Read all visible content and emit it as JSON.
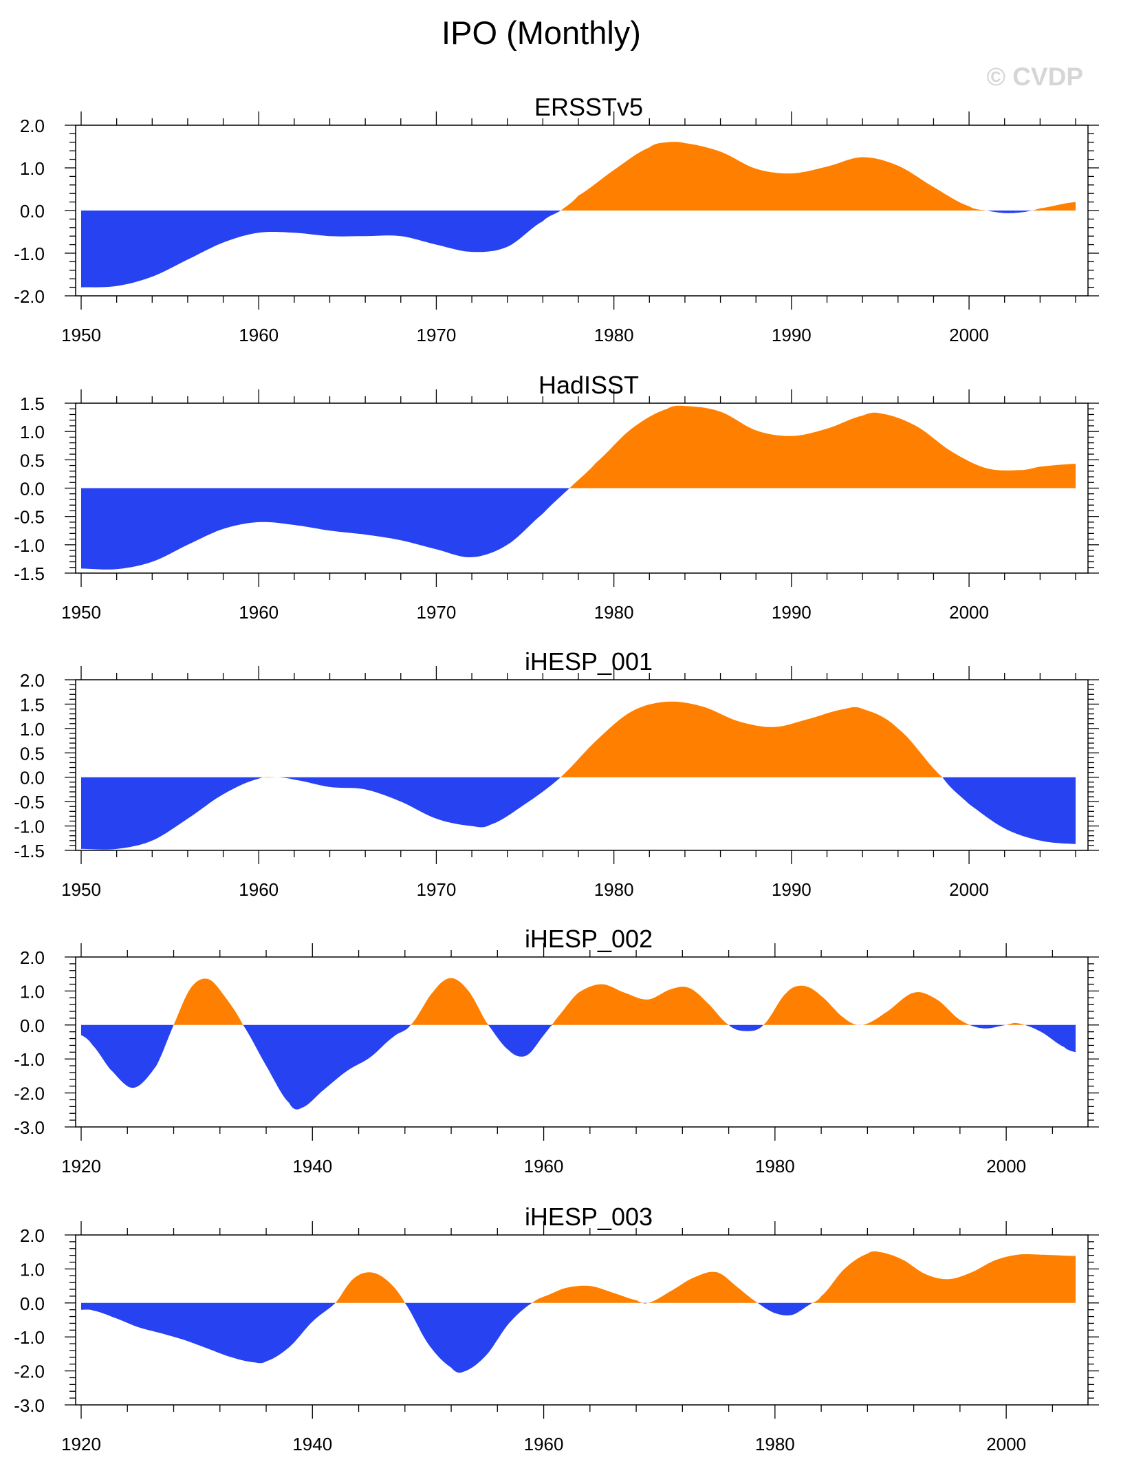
{
  "title": "IPO (Monthly)",
  "watermark": "© CVDP",
  "colors": {
    "positive": "#ff8000",
    "negative": "#2742f0",
    "axis": "#000000"
  },
  "chart_data": [
    {
      "type": "area",
      "title": "ERSSTv5",
      "xlim": [
        1950,
        2006
      ],
      "ylim": [
        -2.0,
        2.0
      ],
      "xticks": [
        1950,
        1960,
        1970,
        1980,
        1990,
        2000
      ],
      "yticks": [
        -2.0,
        -1.0,
        0.0,
        1.0,
        2.0
      ],
      "ytick_labels": [
        "-2.0",
        "-1.0",
        "0.0",
        "1.0",
        "2.0"
      ],
      "x": [
        1950,
        1952,
        1954,
        1956,
        1958,
        1960,
        1962,
        1964,
        1966,
        1968,
        1970,
        1972,
        1974,
        1976,
        1977,
        1978,
        1980,
        1982,
        1983,
        1984,
        1986,
        1988,
        1990,
        1992,
        1994,
        1996,
        1998,
        2000,
        2001,
        2002,
        2003,
        2004,
        2006
      ],
      "values": [
        -1.8,
        -1.77,
        -1.55,
        -1.15,
        -0.75,
        -0.52,
        -0.52,
        -0.6,
        -0.6,
        -0.6,
        -0.8,
        -0.97,
        -0.85,
        -0.25,
        0.0,
        0.35,
        0.95,
        1.48,
        1.6,
        1.58,
        1.38,
        0.98,
        0.87,
        1.03,
        1.25,
        1.05,
        0.55,
        0.1,
        0.0,
        -0.06,
        -0.04,
        0.05,
        0.2
      ]
    },
    {
      "type": "area",
      "title": "HadISST",
      "xlim": [
        1950,
        2006
      ],
      "ylim": [
        -1.5,
        1.5
      ],
      "xticks": [
        1950,
        1960,
        1970,
        1980,
        1990,
        2000
      ],
      "yticks": [
        -1.5,
        -1.0,
        -0.5,
        0.0,
        0.5,
        1.0,
        1.5
      ],
      "ytick_labels": [
        "-1.5",
        "-1.0",
        "-0.5",
        "0.0",
        "0.5",
        "1.0",
        "1.5"
      ],
      "x": [
        1950,
        1952,
        1954,
        1956,
        1958,
        1960,
        1962,
        1964,
        1966,
        1968,
        1970,
        1972,
        1974,
        1976,
        1977.5,
        1979,
        1981,
        1983,
        1984,
        1986,
        1988,
        1990,
        1992,
        1994,
        1995,
        1997,
        1999,
        2001,
        2003,
        2004,
        2006
      ],
      "values": [
        -1.42,
        -1.43,
        -1.3,
        -1.0,
        -0.72,
        -0.6,
        -0.65,
        -0.75,
        -0.82,
        -0.92,
        -1.08,
        -1.22,
        -1.0,
        -0.45,
        0.0,
        0.45,
        1.05,
        1.4,
        1.45,
        1.35,
        1.02,
        0.92,
        1.05,
        1.28,
        1.32,
        1.1,
        0.65,
        0.35,
        0.32,
        0.38,
        0.43
      ]
    },
    {
      "type": "area",
      "title": "iHESP_001",
      "xlim": [
        1950,
        2006
      ],
      "ylim": [
        -1.5,
        2.0
      ],
      "xticks": [
        1950,
        1960,
        1970,
        1980,
        1990,
        2000
      ],
      "yticks": [
        -1.5,
        -1.0,
        -0.5,
        0.0,
        0.5,
        1.0,
        1.5,
        2.0
      ],
      "ytick_labels": [
        "-1.5",
        "-1.0",
        "-0.5",
        "0.0",
        "0.5",
        "1.0",
        "1.5",
        "2.0"
      ],
      "x": [
        1950,
        1952,
        1954,
        1956,
        1958,
        1960,
        1961,
        1962,
        1964,
        1966,
        1968,
        1970,
        1972,
        1973,
        1975,
        1977,
        1979,
        1981,
        1983,
        1985,
        1987,
        1989,
        1991,
        1993,
        1994,
        1996,
        1998.5,
        2000,
        2002,
        2004,
        2006
      ],
      "values": [
        -1.47,
        -1.47,
        -1.3,
        -0.85,
        -0.35,
        -0.03,
        0.0,
        -0.05,
        -0.2,
        -0.25,
        -0.5,
        -0.85,
        -1.0,
        -0.98,
        -0.55,
        0.0,
        0.75,
        1.35,
        1.55,
        1.45,
        1.15,
        1.03,
        1.2,
        1.4,
        1.4,
        1.0,
        0.0,
        -0.55,
        -1.05,
        -1.3,
        -1.37
      ]
    },
    {
      "type": "area",
      "title": "iHESP_002",
      "xlim": [
        1920,
        2006
      ],
      "ylim": [
        -3.0,
        2.0
      ],
      "xticks": [
        1920,
        1940,
        1960,
        1980,
        2000
      ],
      "yticks": [
        -3.0,
        -2.0,
        -1.0,
        0.0,
        1.0,
        2.0
      ],
      "ytick_labels": [
        "-3.0",
        "-2.0",
        "-1.0",
        "0.0",
        "1.0",
        "2.0"
      ],
      "x": [
        1920,
        1921,
        1922.5,
        1924.5,
        1926.5,
        1928,
        1929.5,
        1931,
        1932.5,
        1934,
        1936,
        1938,
        1939,
        1941,
        1943,
        1945,
        1947,
        1948.5,
        1950.5,
        1952,
        1953.5,
        1955,
        1957,
        1958.5,
        1960,
        1961.5,
        1963,
        1965,
        1967,
        1969,
        1971,
        1972.5,
        1974,
        1976,
        1977.5,
        1979,
        1981,
        1982.5,
        1984,
        1986,
        1987.5,
        1989.5,
        1992,
        1994,
        1996,
        1998,
        2000,
        2001,
        2003,
        2005,
        2006
      ],
      "values": [
        -0.3,
        -0.6,
        -1.3,
        -1.85,
        -1.2,
        0.0,
        1.1,
        1.35,
        0.8,
        0.0,
        -1.2,
        -2.3,
        -2.45,
        -1.9,
        -1.35,
        -0.95,
        -0.35,
        0.0,
        1.0,
        1.38,
        1.0,
        0.1,
        -0.75,
        -0.9,
        -0.3,
        0.35,
        0.95,
        1.2,
        0.95,
        0.75,
        1.05,
        1.1,
        0.7,
        0.0,
        -0.18,
        0.0,
        0.95,
        1.15,
        0.85,
        0.2,
        0.0,
        0.35,
        0.95,
        0.75,
        0.15,
        -0.1,
        0.0,
        0.05,
        -0.2,
        -0.65,
        -0.8
      ]
    },
    {
      "type": "area",
      "title": "iHESP_003",
      "xlim": [
        1920,
        2006
      ],
      "ylim": [
        -3.0,
        2.0
      ],
      "xticks": [
        1920,
        1940,
        1960,
        1980,
        2000
      ],
      "yticks": [
        -3.0,
        -2.0,
        -1.0,
        0.0,
        1.0,
        2.0
      ],
      "ytick_labels": [
        "-3.0",
        "-2.0",
        "-1.0",
        "0.0",
        "1.0",
        "2.0"
      ],
      "x": [
        1920,
        1921,
        1923,
        1925,
        1927,
        1929,
        1931,
        1933,
        1935,
        1936,
        1938,
        1940,
        1942,
        1943.5,
        1945,
        1946.5,
        1948,
        1950,
        1952,
        1953,
        1955,
        1957,
        1959,
        1960.5,
        1962,
        1964,
        1966,
        1968,
        1969,
        1971,
        1973,
        1975,
        1977,
        1978.5,
        1980,
        1981.5,
        1983,
        1984,
        1986,
        1988,
        1989,
        1991,
        1993,
        1995,
        1997,
        1999,
        2001,
        2003,
        2006
      ],
      "values": [
        -0.2,
        -0.22,
        -0.45,
        -0.72,
        -0.9,
        -1.1,
        -1.35,
        -1.6,
        -1.75,
        -1.72,
        -1.3,
        -0.55,
        0.0,
        0.7,
        0.9,
        0.65,
        0.0,
        -1.2,
        -1.9,
        -2.03,
        -1.55,
        -0.6,
        0.0,
        0.25,
        0.45,
        0.5,
        0.3,
        0.08,
        0.0,
        0.35,
        0.75,
        0.9,
        0.4,
        0.0,
        -0.3,
        -0.35,
        -0.05,
        0.2,
        1.0,
        1.45,
        1.5,
        1.28,
        0.85,
        0.7,
        0.9,
        1.25,
        1.42,
        1.42,
        1.38
      ]
    }
  ]
}
